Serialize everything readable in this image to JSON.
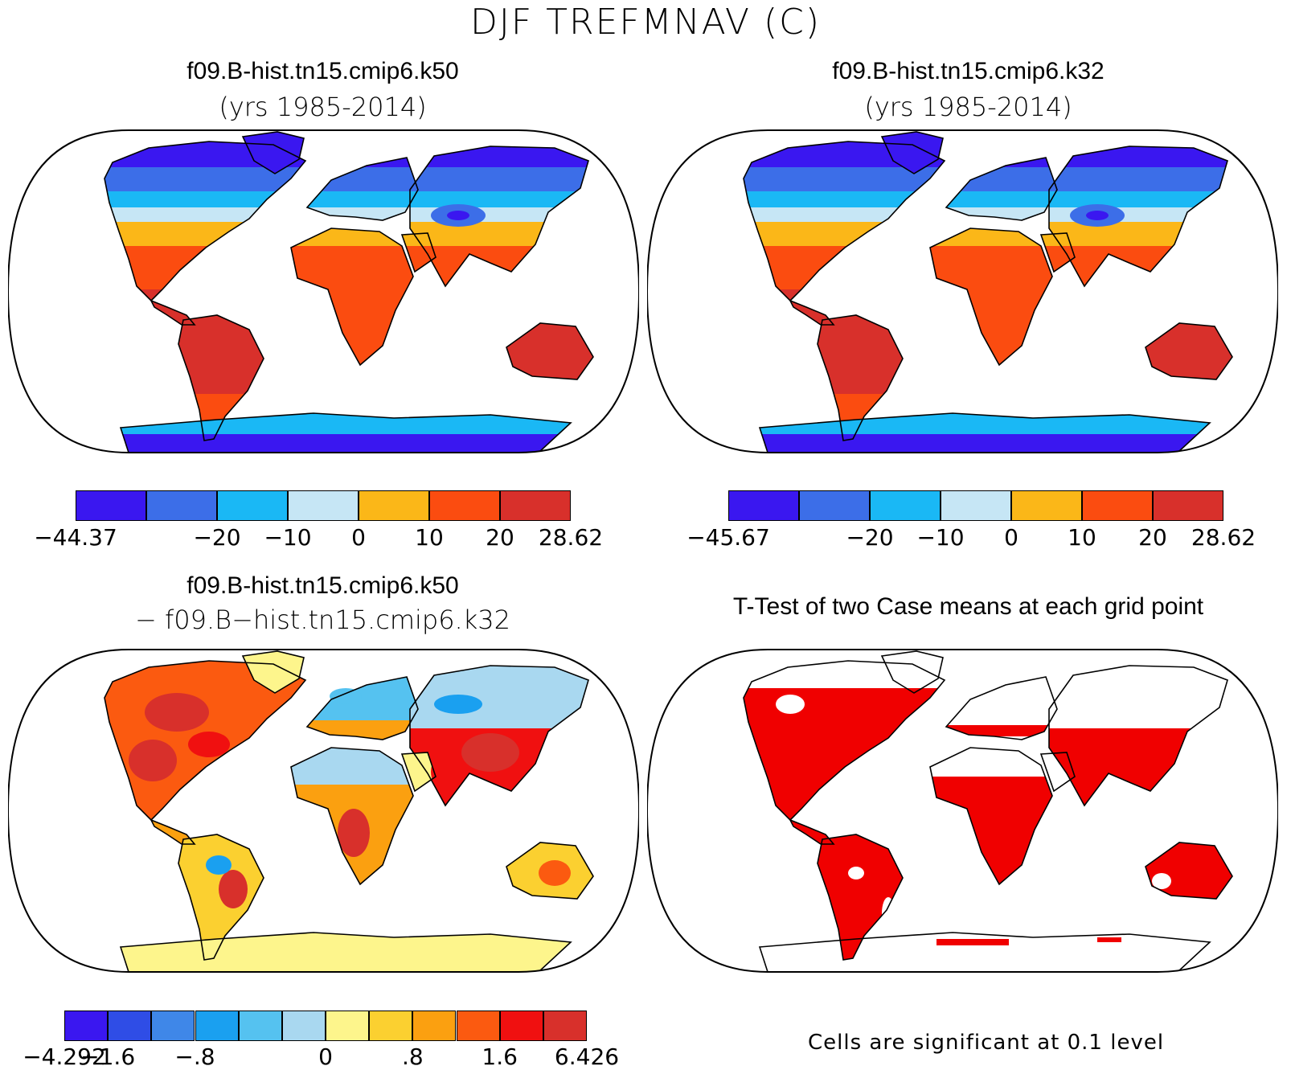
{
  "figure": {
    "title": "DJF TREFMNAV (C)"
  },
  "panels": [
    {
      "id": "top-left",
      "title": "f09.B-hist.tn15.cmip6.k50",
      "subtitle": "(yrs 1985-2014)",
      "colorbar": {
        "colors": [
          "#3a17f0",
          "#3c6ee8",
          "#1ab8f5",
          "#c6e6f5",
          "#fbb718",
          "#fb4c10",
          "#d8302b"
        ],
        "labels": [
          "−44.37",
          "",
          "−20",
          "−10",
          "0",
          "10",
          "20",
          "28.62"
        ]
      }
    },
    {
      "id": "top-right",
      "title": "f09.B-hist.tn15.cmip6.k32",
      "subtitle": "(yrs 1985-2014)",
      "colorbar": {
        "colors": [
          "#3a17f0",
          "#3c6ee8",
          "#1ab8f5",
          "#c6e6f5",
          "#fbb718",
          "#fb4c10",
          "#d8302b"
        ],
        "labels": [
          "−45.67",
          "",
          "−20",
          "−10",
          "0",
          "10",
          "20",
          "28.62"
        ]
      }
    },
    {
      "id": "bottom-left",
      "title": "f09.B-hist.tn15.cmip6.k50",
      "subtitle": "− f09.B−hist.tn15.cmip6.k32",
      "colorbar": {
        "colors": [
          "#3a17f0",
          "#2f4de6",
          "#3f87e8",
          "#1aa0f0",
          "#55c2f0",
          "#a9d8f0",
          "#fdf58c",
          "#fbd030",
          "#fba010",
          "#fb5a10",
          "#f01010",
          "#d8302b"
        ],
        "labels": [
          "−4.292",
          "−1.6",
          "",
          "−.8",
          "",
          "",
          "0",
          "",
          ".8",
          "",
          "1.6",
          "",
          "6.426"
        ]
      }
    },
    {
      "id": "bottom-right",
      "title": "T-Test of two Case means at each grid point",
      "note": "Cells are significant at 0.1 level",
      "significant_color": "#f00000"
    }
  ]
}
